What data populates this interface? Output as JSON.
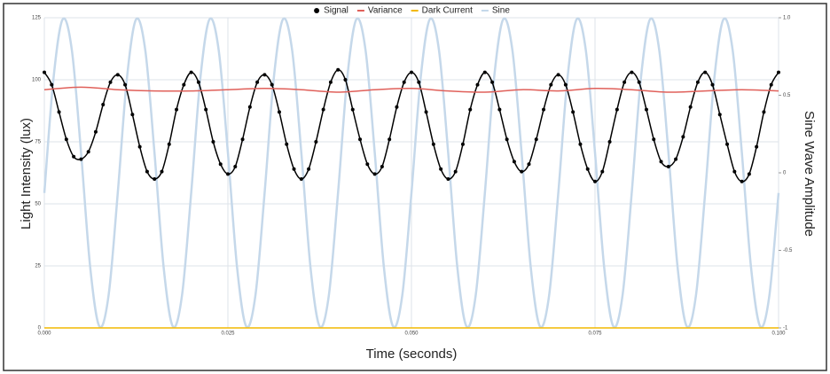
{
  "chart_data": {
    "type": "line",
    "xlabel": "Time (seconds)",
    "ylabel": "Light Intensity (lux)",
    "y2label": "Sine Wave Amplitude",
    "xlim": [
      0,
      0.1
    ],
    "xticks": [
      {
        "value": 0,
        "label": "0.000"
      },
      {
        "value": 0.025,
        "label": "0.025"
      },
      {
        "value": 0.05,
        "label": "0.050"
      },
      {
        "value": 0.075,
        "label": "0.075"
      },
      {
        "value": 0.1,
        "label": "0.100"
      }
    ],
    "ylim": [
      0,
      125
    ],
    "yticks": [
      0,
      25,
      50,
      75,
      100,
      125
    ],
    "y2lim": [
      -1,
      1
    ],
    "y2ticks": [
      {
        "value": -1,
        "label": "-1"
      },
      {
        "value": -0.5,
        "label": "-0.5"
      },
      {
        "value": 0,
        "label": "0"
      },
      {
        "value": 0.5,
        "label": "0.5"
      },
      {
        "value": 1,
        "label": "1.0"
      }
    ],
    "grid": true,
    "legend": "top",
    "smooth": true,
    "series": [
      {
        "name": "Signal",
        "color": "#000000",
        "markers": true,
        "x": [
          0,
          0.001,
          0.002,
          0.003,
          0.004,
          0.005,
          0.006,
          0.007,
          0.008,
          0.009,
          0.01,
          0.011,
          0.012,
          0.013,
          0.014,
          0.015,
          0.016,
          0.017,
          0.018,
          0.019,
          0.02,
          0.021,
          0.022,
          0.023,
          0.024,
          0.025,
          0.026,
          0.027,
          0.028,
          0.029,
          0.03,
          0.031,
          0.032,
          0.033,
          0.034,
          0.035,
          0.036,
          0.037,
          0.038,
          0.039,
          0.04,
          0.041,
          0.042,
          0.043,
          0.044,
          0.045,
          0.046,
          0.047,
          0.048,
          0.049,
          0.05,
          0.051,
          0.052,
          0.053,
          0.054,
          0.055,
          0.056,
          0.057,
          0.058,
          0.059,
          0.06,
          0.061,
          0.062,
          0.063,
          0.064,
          0.065,
          0.066,
          0.067,
          0.068,
          0.069,
          0.07,
          0.071,
          0.072,
          0.073,
          0.074,
          0.075,
          0.076,
          0.077,
          0.078,
          0.079,
          0.08,
          0.081,
          0.082,
          0.083,
          0.084,
          0.085,
          0.086,
          0.087,
          0.088,
          0.089,
          0.09,
          0.091,
          0.092,
          0.093,
          0.094,
          0.095,
          0.096,
          0.097,
          0.098,
          0.099,
          0.1
        ],
        "values": [
          103,
          98,
          87,
          76,
          69,
          68,
          71,
          79,
          90,
          99,
          102,
          98,
          86,
          73,
          63,
          60,
          63,
          74,
          88,
          98,
          103,
          99,
          88,
          75,
          66,
          62,
          65,
          76,
          89,
          99,
          102,
          98,
          87,
          74,
          64,
          60,
          64,
          75,
          88,
          99,
          104,
          100,
          88,
          76,
          66,
          62,
          65,
          76,
          89,
          99,
          103,
          99,
          87,
          74,
          64,
          60,
          63,
          74,
          88,
          98,
          103,
          99,
          88,
          76,
          67,
          63,
          66,
          76,
          88,
          98,
          102,
          98,
          87,
          74,
          64,
          59,
          63,
          75,
          88,
          99,
          103,
          99,
          88,
          76,
          67,
          65,
          68,
          77,
          89,
          99,
          103,
          98,
          86,
          74,
          63,
          59,
          62,
          73,
          87,
          98,
          103
        ]
      },
      {
        "name": "Variance",
        "color": "#e0605a",
        "x": [
          0,
          0.005,
          0.01,
          0.015,
          0.02,
          0.025,
          0.03,
          0.035,
          0.04,
          0.045,
          0.05,
          0.055,
          0.06,
          0.065,
          0.07,
          0.075,
          0.08,
          0.085,
          0.09,
          0.095,
          0.1
        ],
        "values": [
          96,
          97,
          96,
          95.5,
          95.5,
          96,
          96.5,
          96,
          95,
          96,
          96.5,
          95.5,
          95,
          96,
          95.5,
          96.5,
          96,
          95,
          95.5,
          96,
          95.5
        ]
      },
      {
        "name": "Dark Current",
        "color": "#f2b800",
        "x": [
          0,
          0.1
        ],
        "values": [
          0,
          0
        ]
      },
      {
        "name": "Sine",
        "color": "#c5d8ea",
        "axis": "y2",
        "x": [
          0,
          0.00125,
          0.0025,
          0.00375,
          0.005,
          0.00625,
          0.0075,
          0.00875,
          0.01,
          0.01125,
          0.0125,
          0.01375,
          0.015,
          0.01625,
          0.0175,
          0.01875,
          0.02,
          0.02125,
          0.0225,
          0.02375,
          0.025,
          0.02625,
          0.0275,
          0.02875,
          0.03,
          0.03125,
          0.0325,
          0.03375,
          0.035,
          0.03625,
          0.0375,
          0.03875,
          0.04,
          0.04125,
          0.0425,
          0.04375,
          0.045,
          0.04625,
          0.0475,
          0.04875,
          0.05,
          0.05125,
          0.0525,
          0.05375,
          0.055,
          0.05625,
          0.0575,
          0.05875,
          0.06,
          0.06125,
          0.0625,
          0.06375,
          0.065,
          0.06625,
          0.0675,
          0.06875,
          0.07,
          0.07125,
          0.0725,
          0.07375,
          0.075,
          0.07625,
          0.0775,
          0.07875,
          0.08,
          0.08125,
          0.0825,
          0.08375,
          0.085,
          0.08625,
          0.0875,
          0.08875,
          0.09,
          0.09125,
          0.0925,
          0.09375,
          0.095,
          0.09625,
          0.0975,
          0.09875,
          0.1
        ],
        "values": [
          -0.13,
          0.61,
          0.99,
          0.79,
          0.13,
          -0.61,
          -0.99,
          -0.79,
          -0.13,
          0.61,
          0.99,
          0.79,
          0.13,
          -0.61,
          -0.99,
          -0.79,
          -0.13,
          0.61,
          0.99,
          0.79,
          0.13,
          -0.61,
          -0.99,
          -0.79,
          -0.13,
          0.61,
          0.99,
          0.79,
          0.13,
          -0.61,
          -0.99,
          -0.79,
          -0.13,
          0.61,
          0.99,
          0.79,
          0.13,
          -0.61,
          -0.99,
          -0.79,
          -0.13,
          0.61,
          0.99,
          0.79,
          0.13,
          -0.61,
          -0.99,
          -0.79,
          -0.13,
          0.61,
          0.99,
          0.79,
          0.13,
          -0.61,
          -0.99,
          -0.79,
          -0.13,
          0.61,
          0.99,
          0.79,
          0.13,
          -0.61,
          -0.99,
          -0.79,
          -0.13,
          0.61,
          0.99,
          0.79,
          0.13,
          -0.61,
          -0.99,
          -0.79,
          -0.13,
          0.61,
          0.99,
          0.79,
          0.13,
          -0.61,
          -0.99,
          -0.79,
          -0.13
        ]
      }
    ]
  }
}
